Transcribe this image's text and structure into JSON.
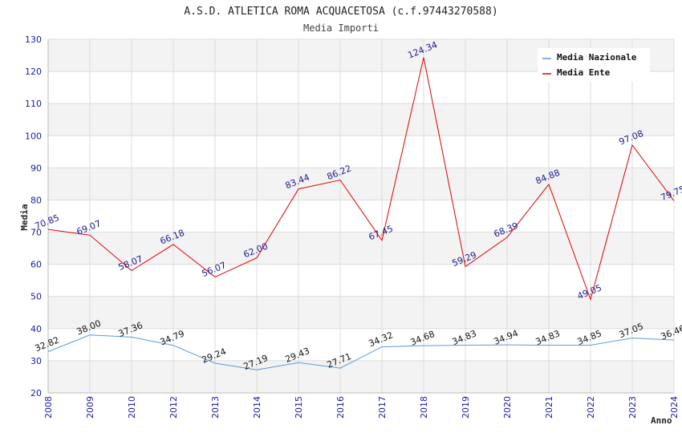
{
  "chart_data": {
    "type": "line",
    "title": "A.S.D. ATLETICA ROMA ACQUACETOSA (c.f.97443270588)",
    "subtitle": "Media Importi",
    "xlabel": "Anno",
    "ylabel": "Media",
    "ylim": [
      20,
      130
    ],
    "yticks": [
      20,
      30,
      40,
      50,
      60,
      70,
      80,
      90,
      100,
      110,
      120,
      130
    ],
    "grid": true,
    "legend_position": "top-right",
    "categories": [
      "2008",
      "2009",
      "2010",
      "2012",
      "2013",
      "2014",
      "2015",
      "2016",
      "2017",
      "2018",
      "2019",
      "2020",
      "2021",
      "2022",
      "2023",
      "2024"
    ],
    "series": [
      {
        "name": "Media Nazionale",
        "color": "#5b9bd5",
        "values": [
          32.82,
          38.0,
          37.36,
          34.79,
          29.24,
          27.19,
          29.43,
          27.71,
          34.32,
          34.68,
          34.83,
          34.94,
          34.83,
          34.85,
          37.05,
          36.46
        ],
        "labels": [
          "32.82",
          "38.00",
          "37.36",
          "34.79",
          "29.24",
          "27.19",
          "29.43",
          "27.71",
          "34.32",
          "34.68",
          "34.83",
          "34.94",
          "34.83",
          "34.85",
          "37.05",
          "36.46"
        ]
      },
      {
        "name": "Media Ente",
        "color": "#e00000",
        "values": [
          70.85,
          69.07,
          58.07,
          66.18,
          56.07,
          62.0,
          83.44,
          86.22,
          67.45,
          124.34,
          59.29,
          68.39,
          84.88,
          49.05,
          97.08,
          79.75
        ],
        "labels": [
          "70.85",
          "69.07",
          "58.07",
          "66.18",
          "56.07",
          "62.00",
          "83.44",
          "86.22",
          "67.45",
          "124.34",
          "59.29",
          "68.39",
          "84.88",
          "49.05",
          "97.08",
          "79.75"
        ]
      }
    ]
  }
}
